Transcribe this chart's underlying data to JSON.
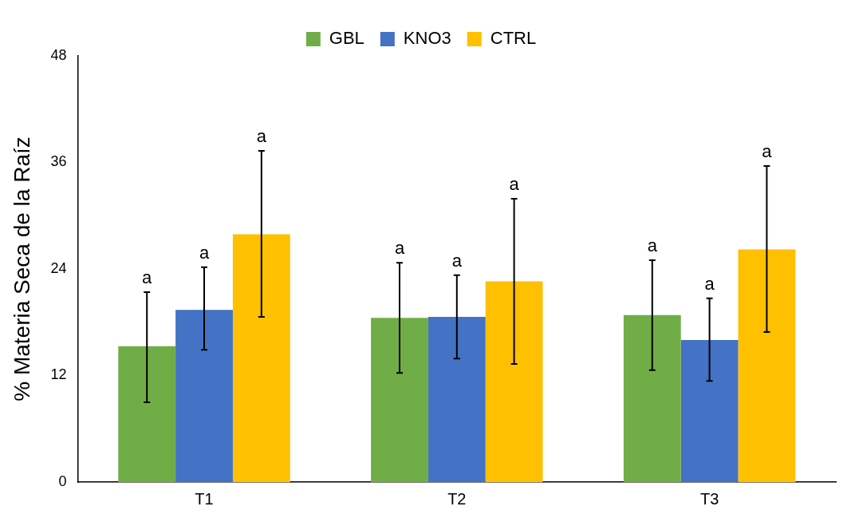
{
  "chart_data": {
    "type": "bar",
    "ylabel": "% Materia Seca de la Raíz",
    "categories": [
      "T1",
      "T2",
      "T3"
    ],
    "series": [
      {
        "name": "GBL",
        "color": "#70ad47",
        "values": [
          15.3,
          18.5,
          18.8
        ],
        "errors": [
          [
            9.0,
            21.4
          ],
          [
            12.3,
            24.7
          ],
          [
            12.6,
            25.0
          ]
        ]
      },
      {
        "name": "KNO3",
        "color": "#4472c4",
        "values": [
          19.4,
          18.6,
          16.0
        ],
        "errors": [
          [
            14.9,
            24.2
          ],
          [
            13.9,
            23.3
          ],
          [
            11.4,
            20.7
          ]
        ]
      },
      {
        "name": "CTRL",
        "color": "#ffc000",
        "values": [
          27.9,
          22.6,
          26.2
        ],
        "errors": [
          [
            18.6,
            37.3
          ],
          [
            13.3,
            31.9
          ],
          [
            16.9,
            35.6
          ]
        ]
      }
    ],
    "annotations": [
      "a",
      "a",
      "a",
      "a",
      "a",
      "a",
      "a",
      "a",
      "a"
    ],
    "ylim": [
      0,
      48
    ],
    "yticks": [
      0,
      12,
      24,
      36,
      48
    ],
    "grid": false,
    "legend": "top"
  }
}
